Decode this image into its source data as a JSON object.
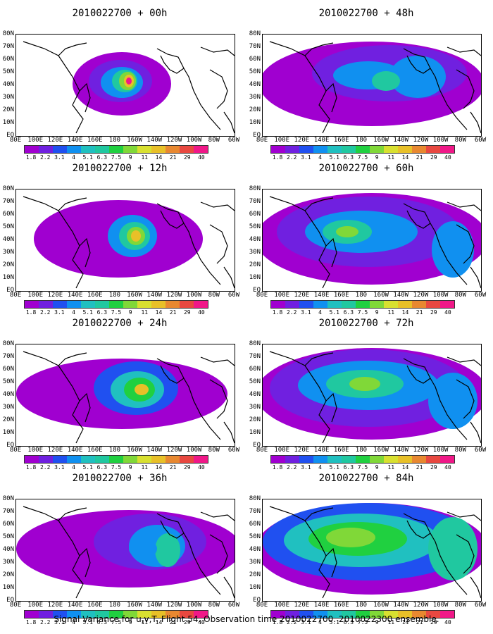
{
  "caption": "Signal Variance for u,v,T. Flight 54. Observation time 2010022700. 2010022300 ensemble.",
  "latitude_labels": [
    "80N",
    "70N",
    "60N",
    "50N",
    "40N",
    "30N",
    "20N",
    "10N",
    "EQ"
  ],
  "longitude_labels": [
    "80E",
    "100E",
    "120E",
    "140E",
    "160E",
    "180",
    "160W",
    "140W",
    "120W",
    "100W",
    "80W",
    "60W"
  ],
  "colorbar": {
    "labels": [
      "1.8",
      "2.2",
      "3.1",
      "4",
      "5.1",
      "6.3",
      "7.5",
      "9",
      "11",
      "14",
      "21",
      "29",
      "40"
    ],
    "colors": [
      "#a000d0",
      "#7020e0",
      "#2050f0",
      "#1090f0",
      "#20c0c0",
      "#20c8a0",
      "#20d040",
      "#80d838",
      "#d8e030",
      "#e8c028",
      "#e88830",
      "#e84840",
      "#f01888"
    ]
  },
  "panels": [
    {
      "title": "2010022700 + 00h",
      "hours": 0
    },
    {
      "title": "2010022700 + 12h",
      "hours": 12
    },
    {
      "title": "2010022700 + 24h",
      "hours": 24
    },
    {
      "title": "2010022700 + 36h",
      "hours": 36
    },
    {
      "title": "2010022700 + 48h",
      "hours": 48
    },
    {
      "title": "2010022700 + 60h",
      "hours": 60
    },
    {
      "title": "2010022700 + 72h",
      "hours": 72
    },
    {
      "title": "2010022700 + 84h",
      "hours": 84
    }
  ]
}
